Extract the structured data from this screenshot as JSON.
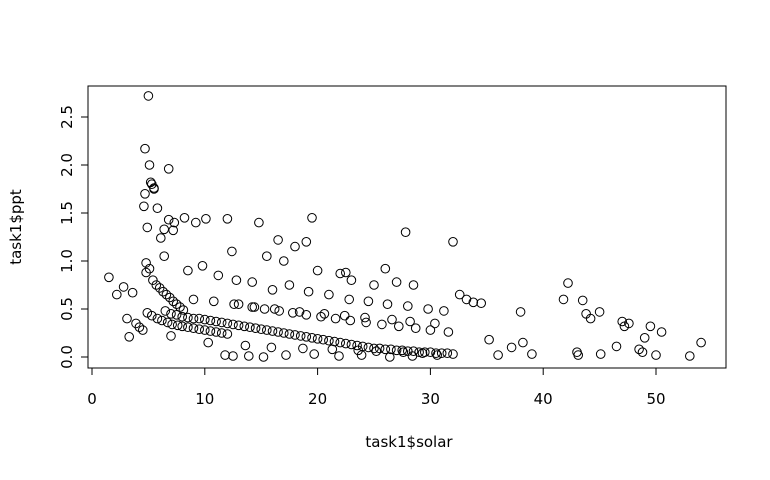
{
  "chart_data": {
    "type": "scatter",
    "title": "",
    "xlabel": "task1$solar",
    "ylabel": "task1$ppt",
    "xlim": [
      0,
      55
    ],
    "ylim": [
      -0.05,
      2.75
    ],
    "x_ticks": [
      "0",
      "10",
      "20",
      "30",
      "40",
      "50"
    ],
    "y_ticks": [
      "0.0",
      "0.5",
      "1.0",
      "1.5",
      "2.0",
      "2.5"
    ],
    "grid": false,
    "marker": "open-circle",
    "x": [
      1.5,
      2.2,
      2.8,
      3.1,
      3.3,
      3.6,
      3.9,
      4.2,
      4.5,
      4.8,
      5.0,
      4.7,
      4.6,
      5.2,
      5.5,
      5.8,
      6.1,
      6.4,
      6.8,
      7.2,
      4.8,
      5.1,
      5.4,
      5.7,
      6.0,
      6.3,
      6.6,
      6.9,
      7.2,
      7.5,
      7.8,
      8.1,
      4.9,
      5.3,
      5.8,
      6.2,
      6.7,
      7.1,
      7.6,
      8.0,
      8.5,
      9.0,
      9.5,
      10.0,
      10.5,
      11.0,
      11.5,
      12.0,
      6.5,
      7.0,
      7.5,
      8.0,
      8.5,
      9.0,
      9.5,
      10.0,
      10.5,
      11.0,
      11.5,
      12.0,
      12.5,
      13.0,
      13.5,
      14.0,
      14.5,
      15.0,
      15.5,
      16.0,
      16.5,
      17.0,
      17.5,
      18.0,
      18.5,
      19.0,
      19.5,
      20.0,
      20.5,
      21.0,
      21.5,
      22.0,
      22.5,
      23.0,
      23.5,
      24.0,
      24.5,
      25.0,
      25.5,
      26.0,
      26.5,
      27.0,
      27.5,
      28.0,
      28.5,
      29.0,
      29.5,
      30.0,
      30.5,
      31.0,
      31.5,
      32.0,
      4.7,
      4.9,
      5.1,
      5.3,
      5.5,
      6.4,
      6.8,
      7.3,
      7.0,
      8.2,
      9.2,
      10.1,
      12.0,
      12.4,
      14.8,
      15.5,
      16.5,
      19.5,
      18.0,
      19.0,
      17.0,
      20.0,
      22.0,
      22.5,
      23.0,
      25.0,
      26.0,
      27.0,
      27.8,
      28.5,
      32.0,
      32.6,
      33.2,
      33.8,
      34.5,
      35.2,
      36.0,
      37.2,
      38.0,
      38.2,
      39.0,
      41.8,
      42.2,
      43.0,
      43.1,
      43.5,
      43.8,
      44.2,
      45.0,
      45.1,
      46.5,
      47.0,
      47.2,
      47.6,
      48.5,
      48.8,
      49.0,
      49.5,
      50.0,
      50.5,
      53.0,
      54.0,
      8.5,
      9.8,
      11.2,
      12.8,
      14.2,
      16.0,
      17.5,
      19.2,
      21.0,
      22.8,
      24.5,
      26.2,
      28.0,
      29.8,
      31.2,
      9.0,
      10.8,
      12.6,
      14.4,
      16.2,
      18.4,
      20.6,
      22.4,
      24.2,
      26.6,
      28.2,
      30.4,
      13.0,
      14.2,
      15.3,
      16.6,
      17.8,
      19.0,
      20.3,
      21.6,
      22.9,
      24.3,
      25.7,
      27.2,
      28.7,
      30.0,
      31.6,
      10.3,
      13.6,
      15.9,
      18.7,
      21.3,
      23.6,
      25.2,
      27.6,
      29.3,
      11.8,
      12.5,
      13.9,
      15.2,
      17.2,
      19.7,
      21.9,
      23.9,
      26.4,
      28.4,
      30.6
    ],
    "y": [
      0.83,
      0.65,
      0.73,
      0.4,
      0.21,
      0.67,
      0.35,
      0.31,
      0.28,
      0.98,
      2.72,
      2.17,
      1.57,
      1.82,
      1.75,
      1.55,
      1.24,
      1.33,
      1.43,
      1.32,
      0.88,
      0.92,
      0.8,
      0.75,
      0.72,
      0.68,
      0.65,
      0.62,
      0.58,
      0.55,
      0.52,
      0.49,
      0.46,
      0.43,
      0.4,
      0.38,
      0.36,
      0.34,
      0.33,
      0.32,
      0.31,
      0.3,
      0.29,
      0.28,
      0.27,
      0.26,
      0.25,
      0.24,
      0.48,
      0.45,
      0.44,
      0.42,
      0.41,
      0.4,
      0.4,
      0.39,
      0.38,
      0.37,
      0.36,
      0.35,
      0.34,
      0.33,
      0.32,
      0.31,
      0.3,
      0.29,
      0.28,
      0.27,
      0.26,
      0.25,
      0.24,
      0.23,
      0.22,
      0.21,
      0.2,
      0.19,
      0.18,
      0.17,
      0.16,
      0.15,
      0.14,
      0.13,
      0.12,
      0.11,
      0.1,
      0.09,
      0.09,
      0.08,
      0.08,
      0.07,
      0.07,
      0.06,
      0.06,
      0.05,
      0.05,
      0.05,
      0.04,
      0.04,
      0.04,
      0.03,
      1.7,
      1.35,
      2.0,
      1.8,
      1.76,
      1.05,
      1.96,
      1.4,
      0.22,
      1.45,
      1.4,
      1.44,
      1.44,
      1.1,
      1.4,
      1.05,
      1.22,
      1.45,
      1.15,
      1.2,
      1.0,
      0.9,
      0.87,
      0.88,
      0.8,
      0.75,
      0.92,
      0.78,
      1.3,
      0.75,
      1.2,
      0.65,
      0.6,
      0.57,
      0.56,
      0.18,
      0.02,
      0.1,
      0.47,
      0.15,
      0.03,
      0.6,
      0.77,
      0.05,
      0.02,
      0.59,
      0.45,
      0.4,
      0.47,
      0.03,
      0.11,
      0.37,
      0.32,
      0.35,
      0.08,
      0.05,
      0.2,
      0.32,
      0.02,
      0.26,
      0.01,
      0.15,
      0.9,
      0.95,
      0.85,
      0.8,
      0.78,
      0.7,
      0.75,
      0.68,
      0.65,
      0.6,
      0.58,
      0.55,
      0.53,
      0.5,
      0.48,
      0.6,
      0.58,
      0.55,
      0.52,
      0.5,
      0.47,
      0.45,
      0.43,
      0.41,
      0.39,
      0.37,
      0.35,
      0.55,
      0.52,
      0.5,
      0.48,
      0.46,
      0.44,
      0.42,
      0.4,
      0.38,
      0.36,
      0.34,
      0.32,
      0.3,
      0.28,
      0.26,
      0.15,
      0.12,
      0.1,
      0.09,
      0.08,
      0.07,
      0.06,
      0.05,
      0.04,
      0.02,
      0.01,
      0.01,
      0.0,
      0.02,
      0.03,
      0.01,
      0.02,
      0.0,
      0.01,
      0.02
    ]
  }
}
